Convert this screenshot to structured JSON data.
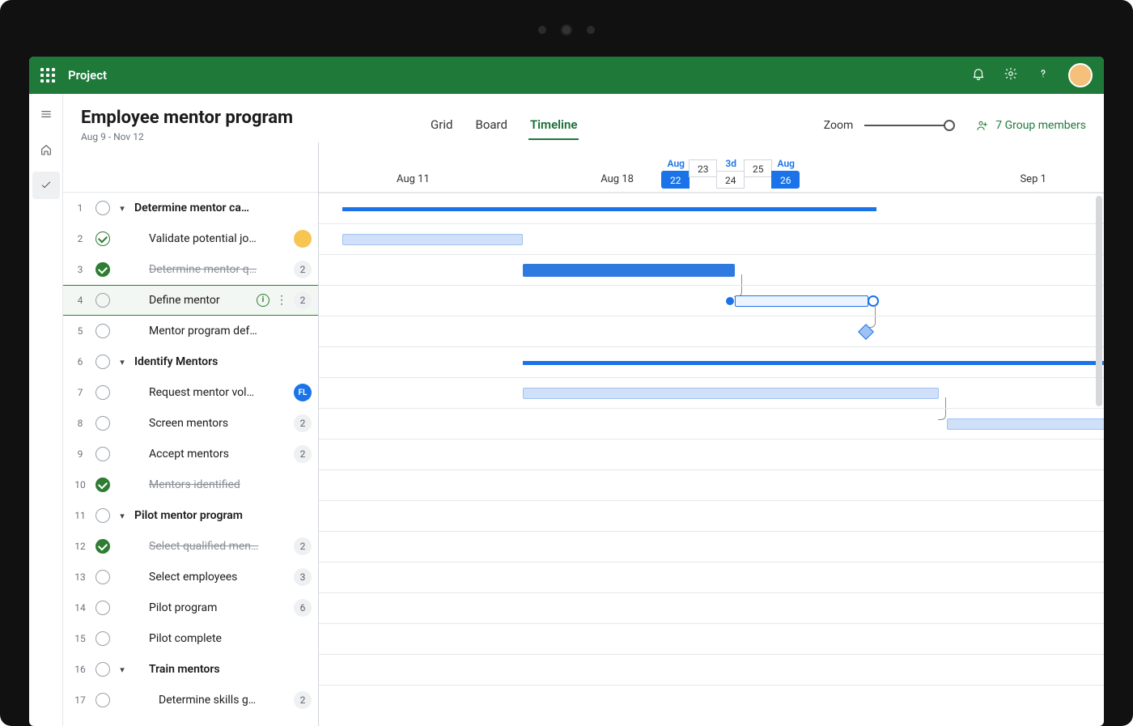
{
  "app": {
    "name": "Project"
  },
  "project": {
    "title": "Employee mentor program",
    "dateRange": "Aug 9 - Nov 12"
  },
  "tabs": [
    {
      "label": "Grid",
      "active": false
    },
    {
      "label": "Board",
      "active": false
    },
    {
      "label": "Timeline",
      "active": true
    }
  ],
  "zoom": {
    "label": "Zoom",
    "value_pct": 100
  },
  "members": {
    "label": "7 Group members",
    "count": 7
  },
  "timeline": {
    "x_unit": "days",
    "axis": {
      "labels": [
        {
          "text": "Aug 11",
          "at_pct": 12
        },
        {
          "text": "Aug 18",
          "at_pct": 38
        },
        {
          "text": "Sep 1",
          "at_pct": 91
        }
      ],
      "focus": {
        "top_labels": [
          "Aug",
          "3d",
          "Aug"
        ],
        "top_label_cols": [
          0,
          2,
          4
        ],
        "cells": [
          {
            "num": "22",
            "selected": true
          },
          {
            "num": "23",
            "selected": false
          },
          {
            "num": "24",
            "selected": false
          },
          {
            "num": "25",
            "selected": false
          },
          {
            "num": "26",
            "selected": true
          }
        ],
        "at_pct": 52.5
      }
    },
    "bars": [
      {
        "row": 0,
        "type": "summary",
        "left_pct": 3,
        "width_pct": 68
      },
      {
        "row": 1,
        "type": "task",
        "left_pct": 3,
        "width_pct": 23
      },
      {
        "row": 2,
        "type": "solid",
        "left_pct": 26,
        "width_pct": 27,
        "link_to_row": 3
      },
      {
        "row": 3,
        "type": "sel",
        "left_pct": 53,
        "width_pct": 17,
        "link_to_row": 4
      },
      {
        "row": 4,
        "type": "milestone",
        "left_pct": 69
      },
      {
        "row": 5,
        "type": "summary",
        "left_pct": 26,
        "width_pct": 74
      },
      {
        "row": 6,
        "type": "task",
        "left_pct": 26,
        "width_pct": 53,
        "link_to_row": 7
      },
      {
        "row": 7,
        "type": "task",
        "left_pct": 80,
        "width_pct": 22
      }
    ],
    "colors": {
      "summary": "#1a73e8",
      "task_fill": "#cfe0f8",
      "task_border": "#9ec3f3",
      "solid": "#2e7adf",
      "selected_border": "#1a73e8",
      "link": "#8a8f98"
    }
  },
  "tasks": [
    {
      "n": 1,
      "name": "Determine mentor ca…",
      "indent": 1,
      "bold": true,
      "chevron": true,
      "status": "open"
    },
    {
      "n": 2,
      "name": "Validate potential jo…",
      "indent": 2,
      "status": "ring",
      "trailing": {
        "type": "avatar"
      }
    },
    {
      "n": 3,
      "name": "Determine mentor q…",
      "indent": 2,
      "status": "done",
      "strike": true,
      "trailing": {
        "type": "count",
        "value": "2"
      }
    },
    {
      "n": 4,
      "name": "Define mentor",
      "indent": 2,
      "status": "open",
      "info": true,
      "kebab": true,
      "selected": true,
      "trailing": {
        "type": "count",
        "value": "2"
      }
    },
    {
      "n": 5,
      "name": "Mentor program def…",
      "indent": 2,
      "status": "open"
    },
    {
      "n": 6,
      "name": "Identify Mentors",
      "indent": 1,
      "bold": true,
      "chevron": true,
      "status": "open"
    },
    {
      "n": 7,
      "name": "Request mentor vol…",
      "indent": 2,
      "status": "open",
      "trailing": {
        "type": "initials",
        "value": "FL"
      }
    },
    {
      "n": 8,
      "name": "Screen mentors",
      "indent": 2,
      "status": "open",
      "trailing": {
        "type": "count",
        "value": "2"
      }
    },
    {
      "n": 9,
      "name": "Accept mentors",
      "indent": 2,
      "status": "open",
      "trailing": {
        "type": "count",
        "value": "2"
      }
    },
    {
      "n": 10,
      "name": "Mentors identified",
      "indent": 2,
      "status": "done",
      "strike": true
    },
    {
      "n": 11,
      "name": "Pilot mentor program",
      "indent": 1,
      "bold": true,
      "chevron": true,
      "status": "open"
    },
    {
      "n": 12,
      "name": "Select qualified men…",
      "indent": 2,
      "status": "done",
      "strike": true,
      "trailing": {
        "type": "count",
        "value": "2"
      }
    },
    {
      "n": 13,
      "name": "Select employees",
      "indent": 2,
      "status": "open",
      "trailing": {
        "type": "count",
        "value": "3"
      }
    },
    {
      "n": 14,
      "name": "Pilot program",
      "indent": 2,
      "status": "open",
      "trailing": {
        "type": "count",
        "value": "6"
      }
    },
    {
      "n": 15,
      "name": "Pilot complete",
      "indent": 2,
      "status": "open"
    },
    {
      "n": 16,
      "name": "Train mentors",
      "indent": 2,
      "bold": true,
      "chevron": true,
      "status": "open"
    },
    {
      "n": 17,
      "name": "Determine skills g…",
      "indent": 3,
      "status": "open",
      "trailing": {
        "type": "count",
        "value": "2"
      }
    }
  ]
}
